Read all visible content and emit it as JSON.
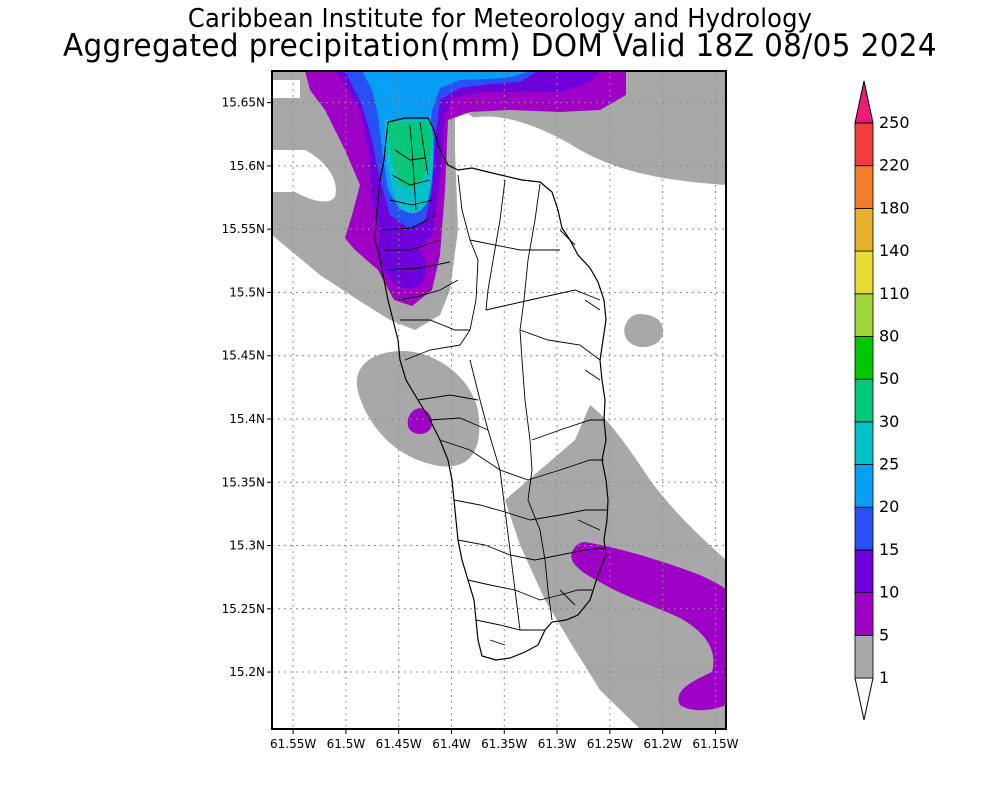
{
  "header": {
    "line1": "Caribbean Institute for Meteorology and Hydrology",
    "line2": "Aggregated precipitation(mm) DOM Valid 18Z 08/05 2024"
  },
  "map": {
    "lon_range": [
      -61.57,
      -61.14
    ],
    "lat_range": [
      15.155,
      15.675
    ],
    "lon_ticks": [
      {
        "value": -61.55,
        "label": "61.55W"
      },
      {
        "value": -61.5,
        "label": "61.5W"
      },
      {
        "value": -61.45,
        "label": "61.45W"
      },
      {
        "value": -61.4,
        "label": "61.4W"
      },
      {
        "value": -61.35,
        "label": "61.35W"
      },
      {
        "value": -61.3,
        "label": "61.3W"
      },
      {
        "value": -61.25,
        "label": "61.25W"
      },
      {
        "value": -61.2,
        "label": "61.2W"
      },
      {
        "value": -61.15,
        "label": "61.15W"
      }
    ],
    "lat_ticks": [
      {
        "value": 15.65,
        "label": "15.65N"
      },
      {
        "value": 15.6,
        "label": "15.6N"
      },
      {
        "value": 15.55,
        "label": "15.55N"
      },
      {
        "value": 15.5,
        "label": "15.5N"
      },
      {
        "value": 15.45,
        "label": "15.45N"
      },
      {
        "value": 15.4,
        "label": "15.4N"
      },
      {
        "value": 15.35,
        "label": "15.35N"
      },
      {
        "value": 15.3,
        "label": "15.3N"
      },
      {
        "value": 15.25,
        "label": "15.25N"
      },
      {
        "value": 15.2,
        "label": "15.2N"
      }
    ],
    "gridlines": true
  },
  "legend": {
    "position": "right",
    "bands": [
      {
        "label": "1",
        "color": "#ffffff"
      },
      {
        "label": "5",
        "color": "#a8a8a8"
      },
      {
        "label": "10",
        "color": "#9e00c6"
      },
      {
        "label": "15",
        "color": "#6f00dc"
      },
      {
        "label": "20",
        "color": "#2850f5"
      },
      {
        "label": "25",
        "color": "#069ff5"
      },
      {
        "label": "30",
        "color": "#00c2c8"
      },
      {
        "label": "50",
        "color": "#00c87a"
      },
      {
        "label": "80",
        "color": "#00c800"
      },
      {
        "label": "110",
        "color": "#9fd83a"
      },
      {
        "label": "140",
        "color": "#e6dc32"
      },
      {
        "label": "180",
        "color": "#e6af2d"
      },
      {
        "label": "220",
        "color": "#f07d2a"
      },
      {
        "label": "250",
        "color": "#f03c3c"
      }
    ],
    "max_color": "#ee1a75"
  }
}
